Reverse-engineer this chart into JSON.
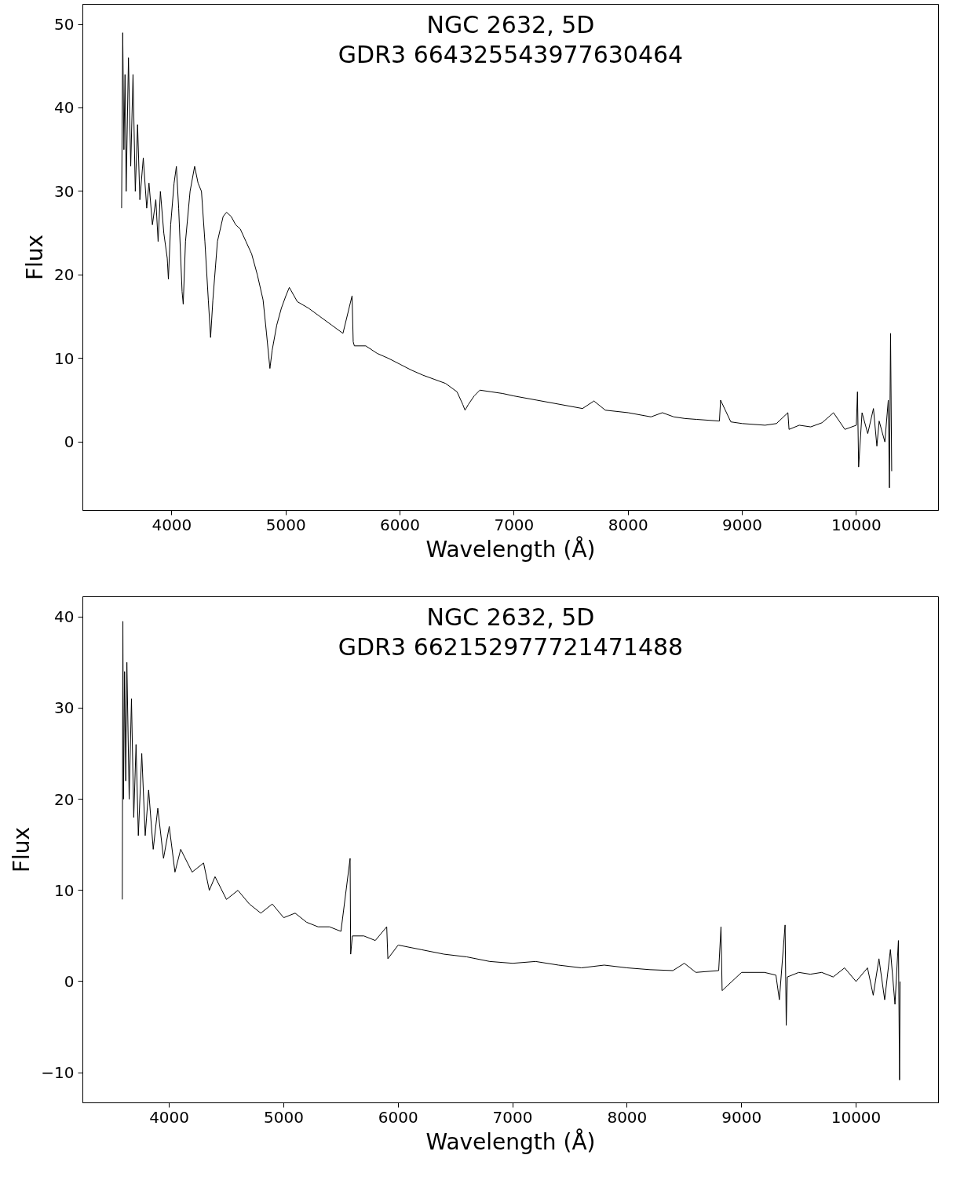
{
  "chart_data": [
    {
      "type": "line",
      "title": "NGC 2632, 5D",
      "subtitle": "GDR3 664325543977630464",
      "xlabel": "Wavelength (Å)",
      "ylabel": "Flux",
      "xlim": [
        3220,
        10720
      ],
      "ylim": [
        -8.2,
        52.4
      ],
      "xticks": [
        4000,
        5000,
        6000,
        7000,
        8000,
        9000,
        10000
      ],
      "yticks": [
        0,
        10,
        20,
        30,
        40,
        50
      ],
      "grid": false,
      "series": [
        {
          "color": "#000000",
          "x": [
            3560,
            3570,
            3580,
            3590,
            3600,
            3620,
            3640,
            3660,
            3680,
            3700,
            3720,
            3750,
            3780,
            3800,
            3830,
            3860,
            3880,
            3900,
            3930,
            3960,
            3970,
            3990,
            4020,
            4040,
            4060,
            4090,
            4100,
            4120,
            4160,
            4200,
            4230,
            4260,
            4290,
            4320,
            4340,
            4360,
            4400,
            4450,
            4480,
            4520,
            4560,
            4600,
            4650,
            4700,
            4750,
            4800,
            4830,
            4860,
            4880,
            4920,
            4960,
            5000,
            5030,
            5100,
            5200,
            5300,
            5400,
            5500,
            5580,
            5590,
            5600,
            5700,
            5800,
            5900,
            6000,
            6100,
            6200,
            6300,
            6400,
            6500,
            6550,
            6570,
            6600,
            6650,
            6700,
            6800,
            6900,
            7000,
            7200,
            7400,
            7600,
            7700,
            7800,
            8000,
            8200,
            8300,
            8400,
            8500,
            8600,
            8800,
            8810,
            8900,
            9000,
            9200,
            9300,
            9400,
            9410,
            9500,
            9600,
            9700,
            9800,
            9900,
            10000,
            10010,
            10020,
            10050,
            10100,
            10150,
            10180,
            10200,
            10250,
            10280,
            10290,
            10300,
            10310
          ],
          "values": [
            28,
            49,
            35,
            44,
            30,
            46,
            33,
            44,
            30,
            38,
            29,
            34,
            28,
            31,
            26,
            29,
            24,
            30,
            25,
            22,
            19.5,
            26,
            31,
            33,
            28,
            18,
            16.5,
            24,
            30,
            33,
            31,
            30,
            24,
            17,
            12.5,
            17,
            24,
            27,
            27.5,
            27,
            26,
            25.5,
            24,
            22.5,
            20,
            17,
            13,
            8.8,
            11,
            14,
            16,
            17.5,
            18.5,
            16.8,
            16,
            15,
            14,
            13,
            17.5,
            12,
            11.5,
            11.5,
            10.6,
            10,
            9.3,
            8.6,
            8,
            7.5,
            7,
            6,
            4.5,
            3.8,
            4.5,
            5.5,
            6.2,
            6,
            5.8,
            5.5,
            5,
            4.5,
            4,
            4.9,
            3.8,
            3.5,
            3,
            3.5,
            3,
            2.8,
            2.7,
            2.5,
            5,
            2.4,
            2.2,
            2,
            2.2,
            3.5,
            1.5,
            2,
            1.8,
            2.3,
            3.5,
            1.5,
            2,
            6,
            -3,
            3.5,
            1,
            4,
            -0.5,
            2.5,
            0,
            5,
            -5.5,
            13,
            -3.5
          ]
        }
      ]
    },
    {
      "type": "line",
      "title": "NGC 2632, 5D",
      "subtitle": "GDR3 662152977721471488",
      "xlabel": "Wavelength (Å)",
      "ylabel": "Flux",
      "xlim": [
        3245,
        10720
      ],
      "ylim": [
        -13.3,
        42.2
      ],
      "xticks": [
        4000,
        5000,
        6000,
        7000,
        8000,
        9000,
        10000
      ],
      "yticks": [
        {
          "value": -10,
          "label": "−10"
        },
        0,
        10,
        20,
        30,
        40
      ],
      "grid": false,
      "series": [
        {
          "color": "#000000",
          "x": [
            3590,
            3595,
            3600,
            3610,
            3620,
            3630,
            3650,
            3670,
            3690,
            3710,
            3730,
            3760,
            3790,
            3820,
            3860,
            3900,
            3950,
            4000,
            4050,
            4100,
            4200,
            4300,
            4350,
            4400,
            4500,
            4600,
            4700,
            4800,
            4900,
            5000,
            5100,
            5200,
            5300,
            5400,
            5500,
            5580,
            5585,
            5600,
            5700,
            5800,
            5900,
            5910,
            6000,
            6200,
            6400,
            6600,
            6800,
            7000,
            7200,
            7400,
            7600,
            7800,
            8000,
            8200,
            8400,
            8500,
            8600,
            8800,
            8820,
            8830,
            9000,
            9200,
            9300,
            9330,
            9380,
            9390,
            9400,
            9500,
            9600,
            9700,
            9800,
            9900,
            10000,
            10100,
            10150,
            10200,
            10250,
            10300,
            10340,
            10370,
            10380,
            10385
          ],
          "values": [
            9,
            39.5,
            20,
            34,
            22,
            35,
            20,
            31,
            18,
            26,
            16,
            25,
            16,
            21,
            14.5,
            19,
            13.5,
            17,
            12,
            14.5,
            12,
            13,
            10,
            11.5,
            9,
            10,
            8.5,
            7.5,
            8.5,
            7,
            7.5,
            6.5,
            6,
            6,
            5.5,
            13.5,
            3,
            5,
            5,
            4.5,
            6,
            2.5,
            4,
            3.5,
            3,
            2.7,
            2.2,
            2,
            2.2,
            1.8,
            1.5,
            1.8,
            1.5,
            1.3,
            1.2,
            2,
            1,
            1.2,
            6,
            -1,
            1,
            1,
            0.7,
            -2,
            6.2,
            -4.8,
            0.5,
            1,
            0.8,
            1,
            0.5,
            1.5,
            0,
            1.5,
            -1.5,
            2.5,
            -2,
            3.5,
            -2.5,
            4.5,
            -10.8,
            0
          ]
        }
      ]
    }
  ]
}
